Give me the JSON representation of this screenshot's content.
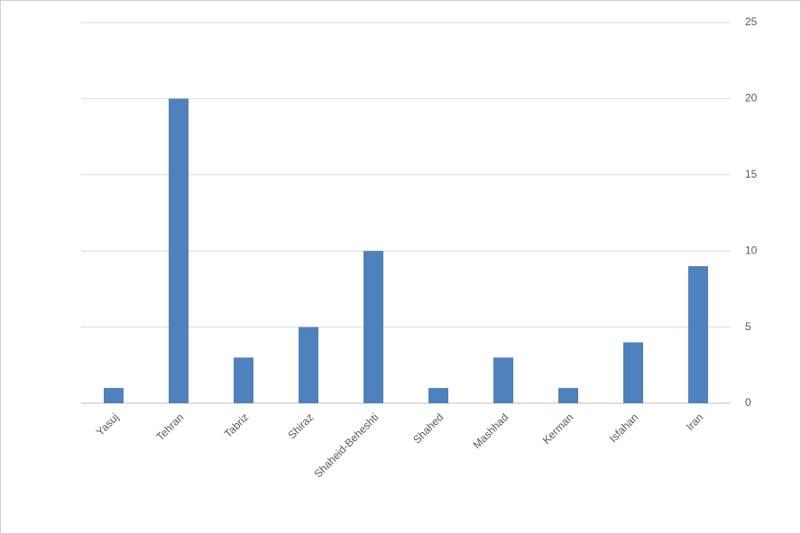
{
  "chart_data": {
    "type": "bar",
    "categories": [
      "Yasuj",
      "Tehran",
      "Tabriz",
      "Shiraz",
      "Shaheid-Beheshti",
      "Shahed",
      "Mashhad",
      "Kerman",
      "Isfahan",
      "Iran"
    ],
    "values": [
      1,
      20,
      3,
      5,
      10,
      1,
      3,
      1,
      4,
      9
    ],
    "color": "#4f81bd",
    "ylim": [
      0,
      25
    ],
    "yticks": [
      0,
      5,
      10,
      15,
      20,
      25
    ],
    "grid": true,
    "y_axis_side": "right"
  }
}
